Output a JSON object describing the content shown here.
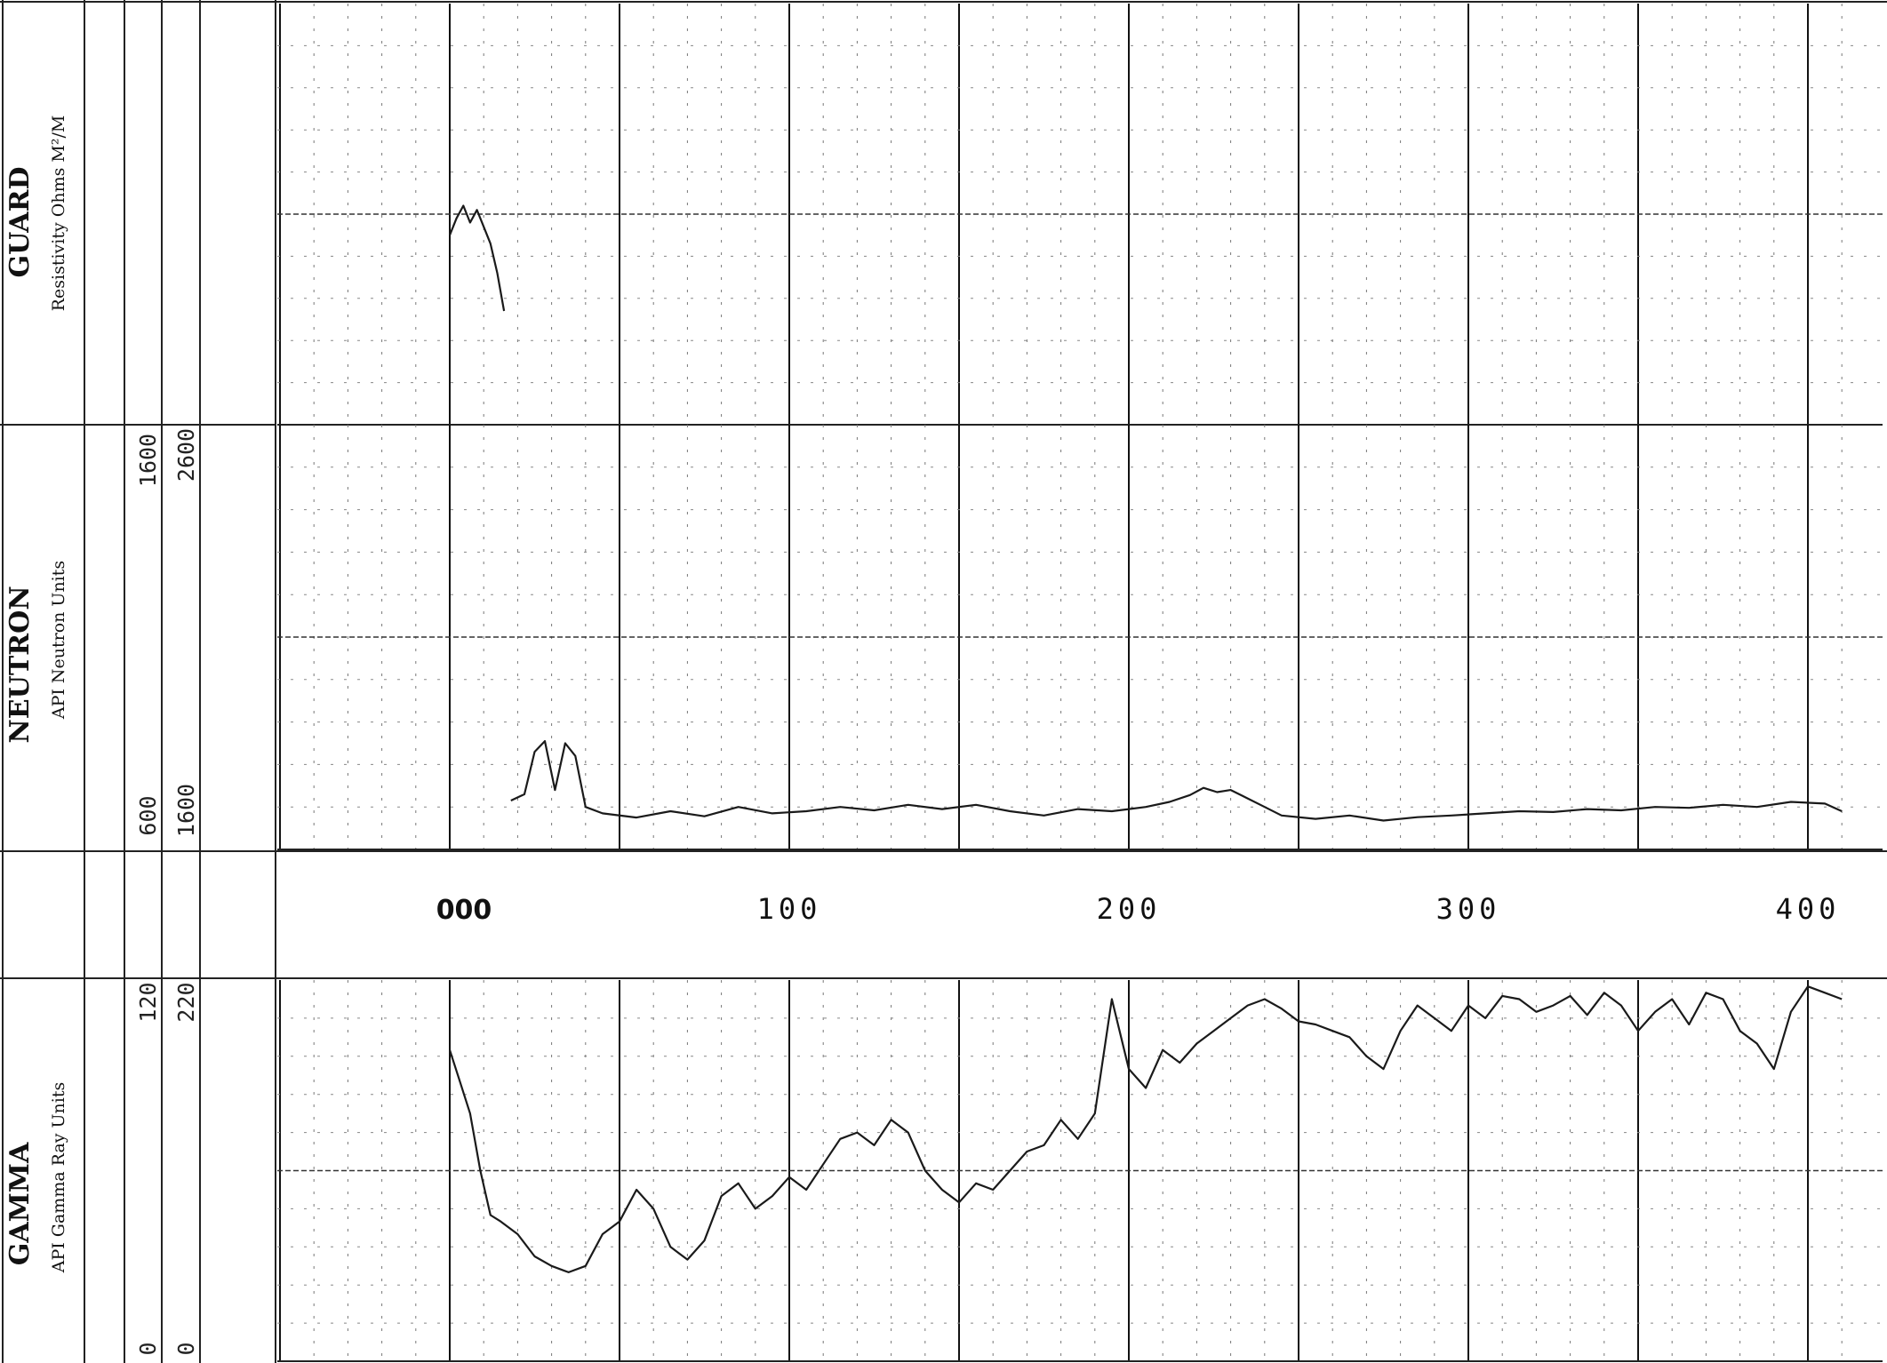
{
  "chart_data": {
    "type": "line",
    "x_axis": {
      "ticks": [
        0,
        100,
        200,
        300,
        400
      ],
      "tick_labels": [
        "000",
        "100",
        "200",
        "300",
        "400"
      ],
      "range": [
        -50,
        415
      ]
    },
    "tracks": [
      {
        "id": "guard",
        "title": "GUARD",
        "subtitle": "Resistivity Ohms M²/M",
        "scale_min": "",
        "scale_max": "",
        "alt_scale_min": "",
        "alt_scale_max": "",
        "y_range": [
          0,
          1
        ],
        "series": [
          {
            "x": [
              0,
              2,
              4,
              6,
              8,
              10,
              12,
              14,
              16
            ],
            "y": [
              0.45,
              0.49,
              0.52,
              0.48,
              0.51,
              0.47,
              0.43,
              0.36,
              0.27
            ]
          }
        ],
        "color": "#1a1a1a"
      },
      {
        "id": "neutron",
        "title": "NEUTRON",
        "subtitle": "API Neutron Units",
        "scale_min": "600",
        "scale_max": "1600",
        "alt_scale_min": "1600",
        "alt_scale_max": "2600",
        "y_range": [
          600,
          1600
        ],
        "series": [
          {
            "x": [
              18,
              22,
              25,
              28,
              31,
              34,
              37,
              40,
              45,
              55,
              65,
              75,
              85,
              95,
              105,
              115,
              125,
              135,
              145,
              155,
              165,
              175,
              185,
              195,
              205,
              212,
              218,
              222,
              226,
              230,
              235,
              240,
              245,
              255,
              265,
              275,
              285,
              295,
              305,
              315,
              325,
              335,
              345,
              355,
              365,
              375,
              385,
              395,
              405,
              410
            ],
            "y": [
              715,
              730,
              830,
              855,
              740,
              850,
              820,
              700,
              685,
              675,
              690,
              678,
              700,
              685,
              690,
              700,
              692,
              705,
              695,
              705,
              690,
              680,
              695,
              690,
              700,
              712,
              728,
              745,
              735,
              740,
              720,
              700,
              680,
              672,
              680,
              668,
              676,
              680,
              685,
              690,
              688,
              695,
              692,
              700,
              698,
              705,
              700,
              712,
              708,
              690
            ]
          }
        ],
        "color": "#1a1a1a"
      },
      {
        "id": "gamma",
        "title": "GAMMA",
        "subtitle": "API Gamma Ray Units",
        "scale_min": "0",
        "scale_max": "120",
        "alt_scale_min": "0",
        "alt_scale_max": "220",
        "y_range": [
          0,
          120
        ],
        "series": [
          {
            "x": [
              0,
              3,
              6,
              9,
              12,
              15,
              20,
              25,
              30,
              35,
              40,
              45,
              50,
              55,
              60,
              65,
              70,
              75,
              80,
              85,
              90,
              95,
              100,
              105,
              110,
              115,
              120,
              125,
              130,
              135,
              140,
              145,
              150,
              155,
              160,
              165,
              170,
              175,
              180,
              185,
              190,
              195,
              200,
              205,
              210,
              215,
              220,
              225,
              230,
              235,
              240,
              245,
              250,
              255,
              260,
              265,
              270,
              275,
              280,
              285,
              290,
              295,
              300,
              305,
              310,
              315,
              320,
              325,
              330,
              335,
              340,
              345,
              350,
              355,
              360,
              365,
              370,
              375,
              380,
              385,
              390,
              395,
              400,
              405,
              410
            ],
            "y": [
              98,
              88,
              78,
              60,
              46,
              44,
              40,
              33,
              30,
              28,
              30,
              40,
              44,
              54,
              48,
              36,
              32,
              38,
              52,
              56,
              48,
              52,
              58,
              54,
              62,
              70,
              72,
              68,
              76,
              72,
              60,
              54,
              50,
              56,
              54,
              60,
              66,
              68,
              76,
              70,
              78,
              114,
              92,
              86,
              98,
              94,
              100,
              104,
              108,
              112,
              114,
              111,
              107,
              106,
              104,
              102,
              96,
              92,
              104,
              112,
              108,
              104,
              112,
              108,
              115,
              114,
              110,
              112,
              115,
              109,
              116,
              112,
              104,
              110,
              114,
              106,
              116,
              114,
              104,
              100,
              92,
              110,
              118,
              116,
              114
            ]
          }
        ],
        "color": "#1a1a1a"
      }
    ]
  }
}
